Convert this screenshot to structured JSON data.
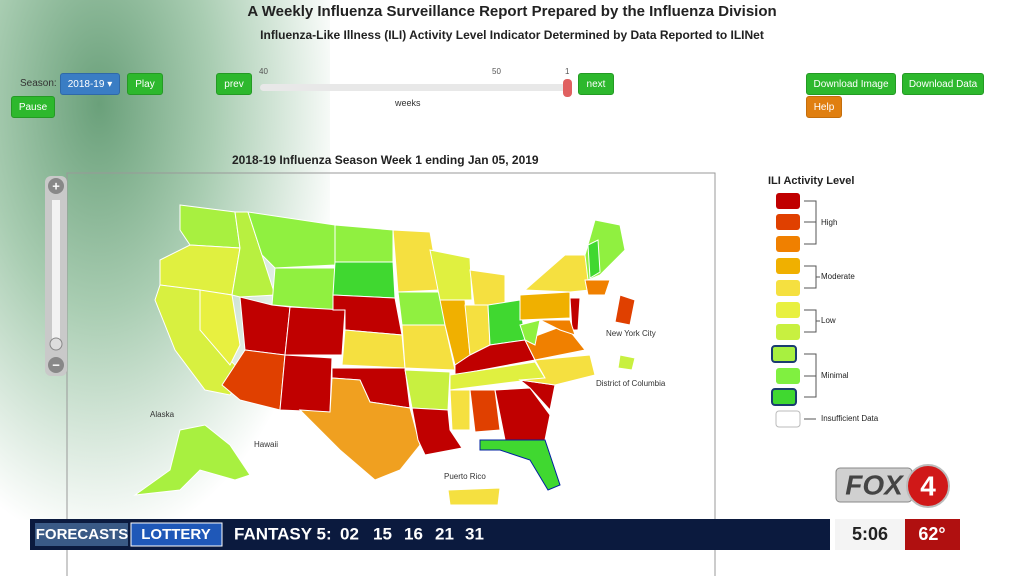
{
  "header": {
    "title": "A Weekly Influenza Surveillance Report Prepared by the Influenza Division",
    "subtitle": "Influenza-Like Illness (ILI) Activity Level Indicator Determined by Data Reported to ILINet"
  },
  "controls": {
    "season_label": "Season:",
    "season": "2018-19",
    "play": "Play",
    "pause": "Pause",
    "prev": "prev",
    "next": "next",
    "slider": {
      "ticks": [
        40,
        50,
        1
      ],
      "label": "weeks"
    },
    "download_image": "Download Image",
    "download_data": "Download Data",
    "help": "Help"
  },
  "map": {
    "title": "2018-19 Influenza Season Week 1 ending Jan 05, 2019",
    "zoom_in": "+",
    "zoom_out": "−",
    "labels": {
      "new_york_city": "New York City",
      "district_of_columbia": "District of Columbia",
      "alaska": "Alaska",
      "hawaii": "Hawaii",
      "puerto_rico": "Puerto Rico"
    }
  },
  "legend": {
    "title": "ILI Activity Level",
    "groups": [
      "High",
      "Moderate",
      "Low",
      "Minimal"
    ],
    "insufficient": "Insufficient Data"
  },
  "ticker": {
    "tabs": [
      "FORECASTS",
      "LOTTERY"
    ],
    "game": "FANTASY 5:",
    "numbers": [
      "02",
      "15",
      "16",
      "21",
      "31"
    ],
    "time": "5:06",
    "temperature": "62°"
  },
  "logo": {
    "text": "FOX",
    "number": "4"
  }
}
